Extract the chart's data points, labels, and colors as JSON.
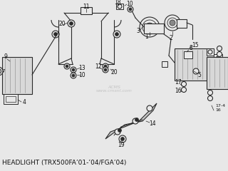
{
  "title": "HEADLIGHT (TRX500FA’01-’04/FGA’04)",
  "bg_color": "#e8e8e8",
  "line_color": "#2a2a2a",
  "text_color": "#111111",
  "title_fontsize": 6.5,
  "watermark_text": "ACMS",
  "watermark_color": "#bbbbbb"
}
